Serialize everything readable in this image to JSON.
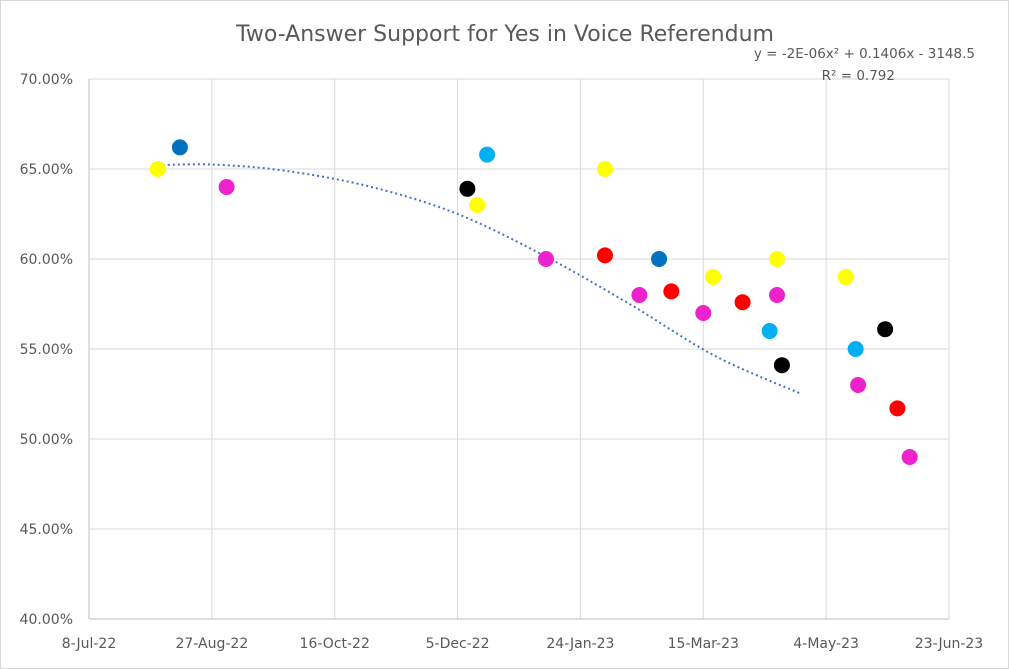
{
  "chart_data": {
    "type": "scatter",
    "title": "Two-Answer Support for Yes in Voice Referendum",
    "xlabel": "",
    "ylabel": "",
    "x_ticks": [
      "8-Jul-22",
      "27-Aug-22",
      "16-Oct-22",
      "5-Dec-22",
      "24-Jan-23",
      "15-Mar-23",
      "4-May-23",
      "23-Jun-23"
    ],
    "y_ticks": [
      "40.00%",
      "45.00%",
      "50.00%",
      "55.00%",
      "60.00%",
      "65.00%",
      "70.00%"
    ],
    "xlim_days": [
      0,
      350
    ],
    "ylim": [
      40,
      70
    ],
    "grid": true,
    "trendline": {
      "type": "polynomial-2",
      "equation": "y = -2E-06x² + 0.1406x - 3148.5",
      "r_squared": "R² = 0.792",
      "color": "#4472C4",
      "points": [
        [
          26,
          65.2
        ],
        [
          50,
          65.25
        ],
        [
          80,
          64.9
        ],
        [
          115,
          64.0
        ],
        [
          150,
          62.5
        ],
        [
          185,
          60.2
        ],
        [
          220,
          57.5
        ],
        [
          255,
          54.6
        ],
        [
          290,
          52.5
        ]
      ]
    },
    "series_colors": {
      "yellow": "#FFFF00",
      "pink": "#EE22CC",
      "blue": "#0070C0",
      "cyan": "#00B0F0",
      "black": "#000000",
      "red": "#FF0000"
    },
    "points": [
      {
        "day": 28,
        "value": 65.0,
        "series": "yellow"
      },
      {
        "day": 37,
        "value": 66.2,
        "series": "blue"
      },
      {
        "day": 56,
        "value": 64.0,
        "series": "pink"
      },
      {
        "day": 154,
        "value": 63.9,
        "series": "black"
      },
      {
        "day": 158,
        "value": 63.0,
        "series": "yellow"
      },
      {
        "day": 162,
        "value": 65.8,
        "series": "cyan"
      },
      {
        "day": 186,
        "value": 60.0,
        "series": "pink"
      },
      {
        "day": 210,
        "value": 60.2,
        "series": "red"
      },
      {
        "day": 210,
        "value": 65.0,
        "series": "yellow"
      },
      {
        "day": 224,
        "value": 58.0,
        "series": "pink"
      },
      {
        "day": 232,
        "value": 60.0,
        "series": "blue"
      },
      {
        "day": 237,
        "value": 58.2,
        "series": "red"
      },
      {
        "day": 250,
        "value": 57.0,
        "series": "pink"
      },
      {
        "day": 254,
        "value": 59.0,
        "series": "yellow"
      },
      {
        "day": 266,
        "value": 57.6,
        "series": "red"
      },
      {
        "day": 277,
        "value": 56.0,
        "series": "cyan"
      },
      {
        "day": 280,
        "value": 60.0,
        "series": "yellow"
      },
      {
        "day": 280,
        "value": 58.0,
        "series": "pink"
      },
      {
        "day": 282,
        "value": 54.1,
        "series": "black"
      },
      {
        "day": 308,
        "value": 59.0,
        "series": "yellow"
      },
      {
        "day": 312,
        "value": 55.0,
        "series": "cyan"
      },
      {
        "day": 313,
        "value": 53.0,
        "series": "pink"
      },
      {
        "day": 324,
        "value": 56.1,
        "series": "black"
      },
      {
        "day": 329,
        "value": 51.7,
        "series": "red"
      },
      {
        "day": 334,
        "value": 49.0,
        "series": "pink"
      }
    ]
  }
}
